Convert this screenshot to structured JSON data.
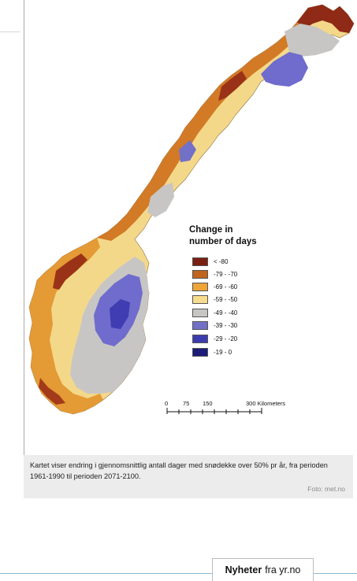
{
  "legend": {
    "title_line1": "Change in",
    "title_line2": "number of days",
    "items": [
      {
        "label": "< -80",
        "color": "#7b1f12"
      },
      {
        "label": "-79 - -70",
        "color": "#c0641e"
      },
      {
        "label": "-69 - -60",
        "color": "#eea437"
      },
      {
        "label": "-59 - -50",
        "color": "#f7dc8e"
      },
      {
        "label": "-49 - -40",
        "color": "#c8c6c4"
      },
      {
        "label": "-39 - -30",
        "color": "#7370c8"
      },
      {
        "label": "-29 - -20",
        "color": "#3d3cae"
      },
      {
        "label": "-19 - 0",
        "color": "#1c1c78"
      }
    ]
  },
  "scale_bar": {
    "labels": [
      "0",
      "75",
      "150",
      "300 Kilometers"
    ]
  },
  "caption": {
    "text": "Kartet viser endring i gjennomsnittlig antall dager med snødekke over 50% pr år, fra perioden 1961-1990 til perioden 2071-2100.",
    "credit": "Foto: met.no"
  },
  "news_link": {
    "strong": "Nyheter",
    "rest": "fra yr.no"
  }
}
